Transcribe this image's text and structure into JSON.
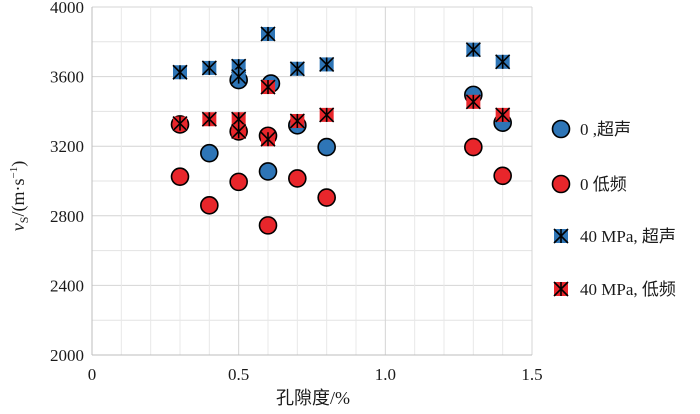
{
  "chart_data": {
    "type": "scatter",
    "title": "",
    "xlabel": "孔隙度/%",
    "ylabel": {
      "main": "v",
      "sub": "S",
      "rest": "/(m·s",
      "sup": "−1",
      "close": ")"
    },
    "xlim": [
      0,
      1.5
    ],
    "ylim": [
      2000,
      4000
    ],
    "xticks": [
      0,
      0.5,
      1.0,
      1.5
    ],
    "xtick_labels": [
      "0",
      "0.5",
      "1.0",
      "1.5"
    ],
    "yticks": [
      2000,
      2400,
      2800,
      3200,
      3600,
      4000
    ],
    "ytick_labels": [
      "2000",
      "2400",
      "2800",
      "3200",
      "3600",
      "4000"
    ],
    "grid": {
      "x": true,
      "y": true,
      "minor_y_step": 200,
      "minor_x_step": 0.1
    },
    "legend_position": "right",
    "series": [
      {
        "name": "0 ,超声",
        "marker": "circle",
        "color": "#2e75b6",
        "points": [
          {
            "x": 0.4,
            "y": 3160
          },
          {
            "x": 0.5,
            "y": 3580
          },
          {
            "x": 0.6,
            "y": 3055
          },
          {
            "x": 0.61,
            "y": 3560
          },
          {
            "x": 0.7,
            "y": 3320
          },
          {
            "x": 0.8,
            "y": 3195
          },
          {
            "x": 1.3,
            "y": 3495
          },
          {
            "x": 1.4,
            "y": 3335
          }
        ]
      },
      {
        "name": "0 低频",
        "marker": "circle",
        "color": "#e8262b",
        "points": [
          {
            "x": 0.3,
            "y": 3325
          },
          {
            "x": 0.3,
            "y": 3025
          },
          {
            "x": 0.4,
            "y": 2860
          },
          {
            "x": 0.5,
            "y": 3285
          },
          {
            "x": 0.5,
            "y": 2995
          },
          {
            "x": 0.6,
            "y": 3260
          },
          {
            "x": 0.6,
            "y": 2745
          },
          {
            "x": 0.7,
            "y": 3015
          },
          {
            "x": 0.8,
            "y": 2905
          },
          {
            "x": 1.3,
            "y": 3195
          },
          {
            "x": 1.4,
            "y": 3030
          }
        ]
      },
      {
        "name": "40 MPa, 超声",
        "marker": "x-square",
        "color": "#2e75b6",
        "points": [
          {
            "x": 0.3,
            "y": 3625
          },
          {
            "x": 0.4,
            "y": 3650
          },
          {
            "x": 0.5,
            "y": 3660
          },
          {
            "x": 0.5,
            "y": 3600
          },
          {
            "x": 0.6,
            "y": 3845
          },
          {
            "x": 0.7,
            "y": 3645
          },
          {
            "x": 0.8,
            "y": 3670
          },
          {
            "x": 1.3,
            "y": 3755
          },
          {
            "x": 1.4,
            "y": 3685
          }
        ]
      },
      {
        "name": "40 MPa, 低频",
        "marker": "x-square",
        "color": "#e8262b",
        "points": [
          {
            "x": 0.3,
            "y": 3330
          },
          {
            "x": 0.4,
            "y": 3355
          },
          {
            "x": 0.5,
            "y": 3355
          },
          {
            "x": 0.5,
            "y": 3285
          },
          {
            "x": 0.6,
            "y": 3540
          },
          {
            "x": 0.6,
            "y": 3240
          },
          {
            "x": 0.7,
            "y": 3345
          },
          {
            "x": 0.8,
            "y": 3380
          },
          {
            "x": 1.3,
            "y": 3455
          },
          {
            "x": 1.4,
            "y": 3380
          }
        ]
      }
    ]
  }
}
